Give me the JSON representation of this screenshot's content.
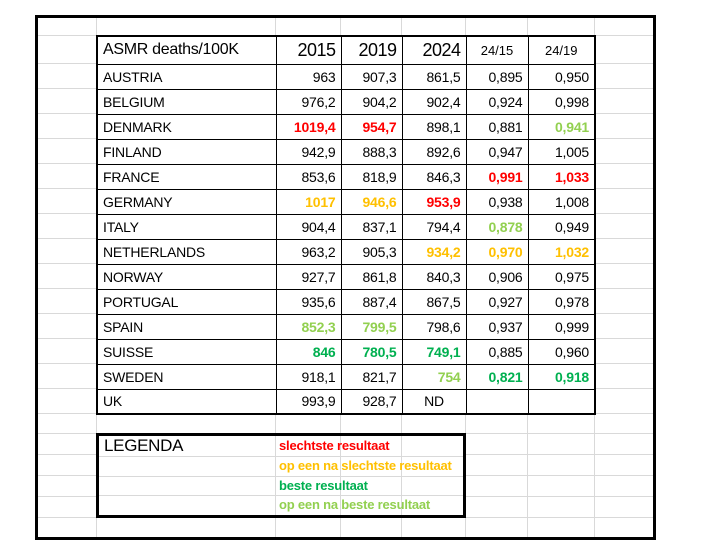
{
  "colors": {
    "red": "#ff0000",
    "orange": "#ffc000",
    "green": "#00b050",
    "light_green": "#92d050",
    "grid": "#d9d9d9",
    "frame": "#000000"
  },
  "table": {
    "header": {
      "label": "ASMR deaths/100K",
      "years": [
        "2015",
        "2019",
        "2024"
      ],
      "ratios": [
        "24/15",
        "24/19"
      ]
    },
    "rows": [
      {
        "country": "AUSTRIA",
        "values": [
          {
            "v": "963"
          },
          {
            "v": "907,3"
          },
          {
            "v": "861,5"
          },
          {
            "v": "0,895"
          },
          {
            "v": "0,950"
          }
        ]
      },
      {
        "country": "BELGIUM",
        "values": [
          {
            "v": "976,2"
          },
          {
            "v": "904,2"
          },
          {
            "v": "902,4"
          },
          {
            "v": "0,924"
          },
          {
            "v": "0,998"
          }
        ]
      },
      {
        "country": "DENMARK",
        "values": [
          {
            "v": "1019,4",
            "c": "red"
          },
          {
            "v": "954,7",
            "c": "red"
          },
          {
            "v": "898,1"
          },
          {
            "v": "0,881"
          },
          {
            "v": "0,941",
            "c": "light_green"
          }
        ]
      },
      {
        "country": "FINLAND",
        "values": [
          {
            "v": "942,9"
          },
          {
            "v": "888,3"
          },
          {
            "v": "892,6"
          },
          {
            "v": "0,947"
          },
          {
            "v": "1,005"
          }
        ]
      },
      {
        "country": "FRANCE",
        "values": [
          {
            "v": "853,6"
          },
          {
            "v": "818,9"
          },
          {
            "v": "846,3"
          },
          {
            "v": "0,991",
            "c": "red"
          },
          {
            "v": "1,033",
            "c": "red"
          }
        ]
      },
      {
        "country": "GERMANY",
        "values": [
          {
            "v": "1017",
            "c": "orange"
          },
          {
            "v": "946,6",
            "c": "orange"
          },
          {
            "v": "953,9",
            "c": "red"
          },
          {
            "v": "0,938"
          },
          {
            "v": "1,008"
          }
        ]
      },
      {
        "country": "ITALY",
        "values": [
          {
            "v": "904,4"
          },
          {
            "v": "837,1"
          },
          {
            "v": "794,4"
          },
          {
            "v": "0,878",
            "c": "light_green"
          },
          {
            "v": "0,949"
          }
        ]
      },
      {
        "country": "NETHERLANDS",
        "values": [
          {
            "v": "963,2"
          },
          {
            "v": "905,3"
          },
          {
            "v": "934,2",
            "c": "orange"
          },
          {
            "v": "0,970",
            "c": "orange"
          },
          {
            "v": "1,032",
            "c": "orange"
          }
        ]
      },
      {
        "country": "NORWAY",
        "values": [
          {
            "v": "927,7"
          },
          {
            "v": "861,8"
          },
          {
            "v": "840,3"
          },
          {
            "v": "0,906"
          },
          {
            "v": "0,975"
          }
        ]
      },
      {
        "country": "PORTUGAL",
        "values": [
          {
            "v": "935,6"
          },
          {
            "v": "887,4"
          },
          {
            "v": "867,5"
          },
          {
            "v": "0,927"
          },
          {
            "v": "0,978"
          }
        ]
      },
      {
        "country": "SPAIN",
        "values": [
          {
            "v": "852,3",
            "c": "light_green"
          },
          {
            "v": "799,5",
            "c": "light_green"
          },
          {
            "v": "798,6"
          },
          {
            "v": "0,937"
          },
          {
            "v": "0,999"
          }
        ]
      },
      {
        "country": "SUISSE",
        "values": [
          {
            "v": "846",
            "c": "green"
          },
          {
            "v": "780,5",
            "c": "green"
          },
          {
            "v": "749,1",
            "c": "green"
          },
          {
            "v": "0,885"
          },
          {
            "v": "0,960"
          }
        ]
      },
      {
        "country": "SWEDEN",
        "values": [
          {
            "v": "918,1"
          },
          {
            "v": "821,7"
          },
          {
            "v": "754",
            "c": "light_green"
          },
          {
            "v": "0,821",
            "c": "green"
          },
          {
            "v": "0,918",
            "c": "green"
          }
        ]
      },
      {
        "country": "UK",
        "values": [
          {
            "v": "993,9"
          },
          {
            "v": "928,7"
          },
          {
            "v": "ND"
          },
          {
            "v": ""
          },
          {
            "v": ""
          }
        ]
      }
    ]
  },
  "legend": {
    "title": "LEGENDA",
    "items": [
      {
        "label": "slechtste resultaat",
        "color": "red"
      },
      {
        "label": "op een na slechtste resultaat",
        "color": "orange"
      },
      {
        "label": "beste resultaat",
        "color": "green"
      },
      {
        "label": "op een na beste resultaat",
        "color": "light_green"
      }
    ]
  }
}
